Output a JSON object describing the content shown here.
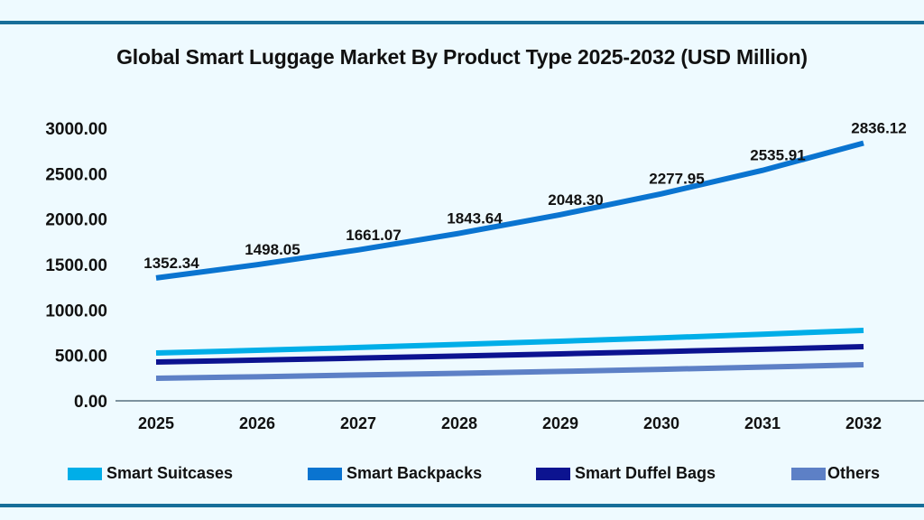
{
  "chart_data": {
    "type": "line",
    "title": "Global Smart Luggage Market By Product Type 2025-2032 (USD Million)",
    "xlabel": "",
    "ylabel": "",
    "categories": [
      "2025",
      "2026",
      "2027",
      "2028",
      "2029",
      "2030",
      "2031",
      "2032"
    ],
    "y_ticks": [
      "0.00",
      "500.00",
      "1000.00",
      "1500.00",
      "2000.00",
      "2500.00",
      "3000.00"
    ],
    "ylim": [
      0,
      3000
    ],
    "grid": false,
    "legend_placement": "bottom",
    "series": [
      {
        "name": "Smart Suitcases",
        "color": "#00aee8",
        "values": [
          526,
          556,
          587,
          621,
          656,
          693,
          733,
          775
        ]
      },
      {
        "name": "Smart Backpacks",
        "color": "#0a74d0",
        "values": [
          1352.34,
          1498.05,
          1661.07,
          1843.64,
          2048.3,
          2277.95,
          2535.91,
          2836.12
        ],
        "data_labels": [
          "1352.34",
          "1498.05",
          "1661.07",
          "1843.64",
          "2048.30",
          "2277.95",
          "2535.91",
          "2836.12"
        ]
      },
      {
        "name": "Smart Duffel Bags",
        "color": "#0c1390",
        "values": [
          427,
          448,
          470,
          493,
          517,
          542,
          568,
          596
        ]
      },
      {
        "name": "Others",
        "color": "#5d80c6",
        "values": [
          248,
          265,
          284,
          303,
          324,
          347,
          371,
          397
        ]
      }
    ]
  },
  "colors": {
    "background": "#eefaff",
    "rule": "#176e99",
    "axis": "#3a5566"
  }
}
